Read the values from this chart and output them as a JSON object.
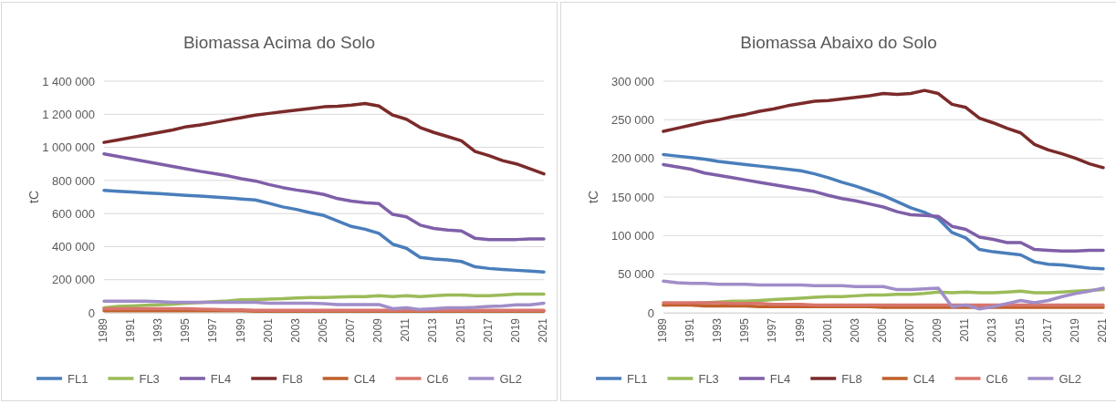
{
  "chart_data": [
    {
      "type": "line",
      "title": "Biomassa Acima do Solo",
      "ylabel": "tC",
      "categories": [
        "1989",
        null,
        "1991",
        null,
        "1993",
        null,
        "1995",
        null,
        "1997",
        null,
        "1999",
        null,
        "2001",
        null,
        "2003",
        null,
        "2005",
        null,
        "2007",
        null,
        "2009",
        null,
        "2011",
        null,
        "2013",
        null,
        "2015",
        null,
        "2017",
        null,
        "2019",
        null,
        "2021"
      ],
      "ylim": [
        0,
        1400000
      ],
      "yticks": [
        {
          "value": 0,
          "label": "0"
        },
        {
          "value": 200000,
          "label": "200 000"
        },
        {
          "value": 400000,
          "label": "400 000"
        },
        {
          "value": 600000,
          "label": "600 000"
        },
        {
          "value": 800000,
          "label": "800 000"
        },
        {
          "value": 1000000,
          "label": "1 000 000"
        },
        {
          "value": 1200000,
          "label": "1 200 000"
        },
        {
          "value": 1400000,
          "label": "1 400 000"
        }
      ],
      "grid": "y",
      "legend": "bottom",
      "marker": "none",
      "line_style": "solid",
      "series": [
        {
          "name": "FL1",
          "color": "#4a7ebb",
          "values": [
            740000,
            735000,
            730000,
            725000,
            720000,
            715000,
            710000,
            705000,
            700000,
            695000,
            688000,
            682000,
            662000,
            640000,
            625000,
            605000,
            588000,
            555000,
            522000,
            505000,
            480000,
            415000,
            390000,
            335000,
            325000,
            320000,
            310000,
            278000,
            268000,
            262000,
            257000,
            252000,
            247000
          ]
        },
        {
          "name": "FL3",
          "color": "#9bbb59",
          "values": [
            30000,
            38000,
            42000,
            45000,
            48000,
            52000,
            58000,
            62000,
            68000,
            72000,
            78000,
            80000,
            83000,
            85000,
            90000,
            93000,
            93000,
            95000,
            98000,
            98000,
            103000,
            98000,
            103000,
            98000,
            103000,
            108000,
            108000,
            103000,
            103000,
            108000,
            113000,
            113000,
            113000
          ]
        },
        {
          "name": "FL4",
          "color": "#7f5fa8",
          "values": [
            960000,
            945000,
            930000,
            915000,
            900000,
            885000,
            870000,
            855000,
            842000,
            828000,
            810000,
            797000,
            775000,
            757000,
            742000,
            730000,
            715000,
            690000,
            675000,
            665000,
            660000,
            595000,
            580000,
            530000,
            510000,
            500000,
            495000,
            450000,
            442000,
            442000,
            443000,
            447000,
            447000
          ]
        },
        {
          "name": "FL8",
          "color": "#7b2a2a",
          "values": [
            1030000,
            1045000,
            1060000,
            1075000,
            1090000,
            1105000,
            1125000,
            1135000,
            1150000,
            1165000,
            1180000,
            1195000,
            1205000,
            1215000,
            1225000,
            1235000,
            1245000,
            1248000,
            1255000,
            1265000,
            1250000,
            1195000,
            1170000,
            1120000,
            1090000,
            1065000,
            1040000,
            975000,
            950000,
            920000,
            900000,
            870000,
            840000
          ]
        },
        {
          "name": "CL4",
          "color": "#c0602a",
          "values": [
            12000,
            12000,
            12000,
            12000,
            12000,
            12000,
            12000,
            12000,
            12000,
            12000,
            12000,
            10000,
            10000,
            10000,
            10000,
            10000,
            10000,
            10000,
            10000,
            10000,
            10000,
            10000,
            10000,
            10000,
            10000,
            10000,
            10000,
            10000,
            10000,
            10000,
            10000,
            10000,
            10000
          ]
        },
        {
          "name": "CL6",
          "color": "#d9756d",
          "values": [
            25000,
            25000,
            25000,
            25000,
            25000,
            25000,
            25000,
            22000,
            20000,
            18000,
            18000,
            15000,
            15000,
            15000,
            15000,
            15000,
            15000,
            15000,
            15000,
            15000,
            15000,
            15000,
            15000,
            15000,
            15000,
            15000,
            15000,
            15000,
            15000,
            15000,
            15000,
            15000,
            15000
          ]
        },
        {
          "name": "GL2",
          "color": "#a08dc8",
          "values": [
            70000,
            70000,
            70000,
            70000,
            68000,
            63000,
            63000,
            63000,
            63000,
            63000,
            63000,
            63000,
            58000,
            58000,
            58000,
            58000,
            55000,
            50000,
            50000,
            50000,
            50000,
            25000,
            30000,
            20000,
            25000,
            30000,
            30000,
            33000,
            38000,
            42000,
            48000,
            48000,
            58000
          ]
        }
      ]
    },
    {
      "type": "line",
      "title": "Biomassa Abaixo do Solo",
      "ylabel": "tC",
      "categories": [
        "1989",
        null,
        "1991",
        null,
        "1993",
        null,
        "1995",
        null,
        "1997",
        null,
        "1999",
        null,
        "2001",
        null,
        "2003",
        null,
        "2005",
        null,
        "2007",
        null,
        "2009",
        null,
        "2011",
        null,
        "2013",
        null,
        "2015",
        null,
        "2017",
        null,
        "2019",
        null,
        "2021"
      ],
      "ylim": [
        0,
        300000
      ],
      "yticks": [
        {
          "value": 0,
          "label": "0"
        },
        {
          "value": 50000,
          "label": "50 000"
        },
        {
          "value": 100000,
          "label": "100 000"
        },
        {
          "value": 150000,
          "label": "150 000"
        },
        {
          "value": 200000,
          "label": "200 000"
        },
        {
          "value": 250000,
          "label": "250 000"
        },
        {
          "value": 300000,
          "label": "300 000"
        }
      ],
      "grid": "y",
      "legend": "bottom",
      "marker": "none",
      "line_style": "solid",
      "series": [
        {
          "name": "FL1",
          "color": "#4a7ebb",
          "values": [
            205000,
            203000,
            201000,
            199000,
            196000,
            194000,
            192000,
            190000,
            188000,
            186000,
            184000,
            180000,
            175000,
            169000,
            164000,
            158000,
            152000,
            144000,
            136000,
            130000,
            122000,
            104000,
            97000,
            82000,
            79000,
            77000,
            75000,
            66000,
            63000,
            62000,
            60000,
            58000,
            57000
          ]
        },
        {
          "name": "FL3",
          "color": "#9bbb59",
          "values": [
            10000,
            11000,
            12000,
            13000,
            14000,
            15000,
            15000,
            16000,
            17000,
            18000,
            19000,
            20000,
            21000,
            21000,
            22000,
            23000,
            23000,
            24000,
            24000,
            25000,
            27000,
            26000,
            27000,
            26000,
            26000,
            27000,
            28000,
            26000,
            26000,
            27000,
            28000,
            29000,
            30000
          ]
        },
        {
          "name": "FL4",
          "color": "#7f5fa8",
          "values": [
            192000,
            189000,
            186000,
            181000,
            178000,
            175000,
            172000,
            169000,
            166000,
            163000,
            160000,
            157000,
            152000,
            148000,
            145000,
            141000,
            137000,
            131000,
            127000,
            126000,
            125000,
            112000,
            108000,
            98000,
            95000,
            91000,
            91000,
            82000,
            81000,
            80000,
            80000,
            81000,
            81000
          ]
        },
        {
          "name": "FL8",
          "color": "#7b2a2a",
          "values": [
            235000,
            239000,
            243000,
            247000,
            250000,
            254000,
            257000,
            261000,
            264000,
            268000,
            271000,
            274000,
            275000,
            277000,
            279000,
            281000,
            284000,
            283000,
            284000,
            288000,
            284000,
            270000,
            266000,
            252000,
            246000,
            239000,
            233000,
            218000,
            211000,
            206000,
            200000,
            193000,
            188000
          ]
        },
        {
          "name": "CL4",
          "color": "#c0602a",
          "values": [
            10000,
            10000,
            10000,
            9000,
            9000,
            9000,
            9000,
            8000,
            8000,
            8000,
            8000,
            8000,
            8000,
            8000,
            8000,
            8000,
            7000,
            7000,
            7000,
            7000,
            7000,
            7000,
            7000,
            7000,
            7000,
            7000,
            7000,
            7000,
            7000,
            7000,
            7000,
            7000,
            7000
          ]
        },
        {
          "name": "CL6",
          "color": "#d9756d",
          "values": [
            13000,
            13000,
            13000,
            13000,
            13000,
            12000,
            12000,
            12000,
            11000,
            11000,
            11000,
            10000,
            10000,
            10000,
            10000,
            10000,
            10000,
            10000,
            10000,
            10000,
            10000,
            10000,
            10000,
            10000,
            10000,
            10000,
            10000,
            10000,
            10000,
            10000,
            10000,
            10000,
            10000
          ]
        },
        {
          "name": "GL2",
          "color": "#a08dc8",
          "values": [
            41000,
            39000,
            38000,
            38000,
            37000,
            37000,
            37000,
            36000,
            36000,
            36000,
            36000,
            35000,
            35000,
            35000,
            34000,
            34000,
            34000,
            30000,
            30000,
            31000,
            32000,
            8000,
            10000,
            5000,
            8000,
            12000,
            16000,
            13000,
            16000,
            21000,
            25000,
            28000,
            32000
          ]
        }
      ]
    }
  ]
}
